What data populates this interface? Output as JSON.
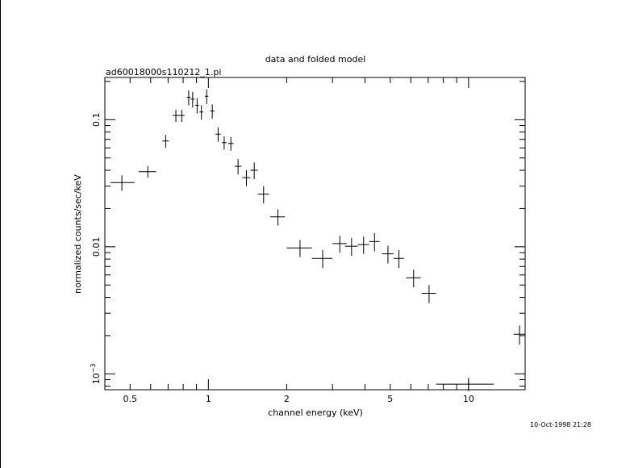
{
  "chart_data": {
    "type": "scatter",
    "title": "data and folded model",
    "subtitle": "ad60018000s110212_1.pi",
    "xlabel": "channel energy (keV)",
    "ylabel": "normalized counts/sec/keV",
    "xscale": "log",
    "yscale": "log",
    "xlim": [
      0.4,
      16.5
    ],
    "ylim": [
      0.00075,
      0.215
    ],
    "grid": false,
    "x_tick_labels": [
      "0.5",
      "1",
      "2",
      "5",
      "10"
    ],
    "y_tick_labels": [
      "10",
      "0.01",
      "0.1"
    ],
    "y_tick_exponent": "−3",
    "timestamp": "10-Oct-1998 21:28",
    "points": [
      {
        "x": 0.465,
        "y": 0.032,
        "xerr": [
          0.045,
          0.055
        ],
        "yerr": [
          0.0045,
          0.0045
        ]
      },
      {
        "x": 0.585,
        "y": 0.039,
        "xerr": [
          0.045,
          0.045
        ],
        "yerr": [
          0.004,
          0.004
        ]
      },
      {
        "x": 0.685,
        "y": 0.068,
        "xerr": [
          0.02,
          0.02
        ],
        "yerr": [
          0.008,
          0.008
        ]
      },
      {
        "x": 0.75,
        "y": 0.108,
        "xerr": [
          0.02,
          0.02
        ],
        "yerr": [
          0.012,
          0.012
        ]
      },
      {
        "x": 0.79,
        "y": 0.108,
        "xerr": [
          0.02,
          0.02
        ],
        "yerr": [
          0.012,
          0.012
        ]
      },
      {
        "x": 0.84,
        "y": 0.15,
        "xerr": [
          0.015,
          0.015
        ],
        "yerr": [
          0.02,
          0.02
        ]
      },
      {
        "x": 0.87,
        "y": 0.145,
        "xerr": [
          0.015,
          0.015
        ],
        "yerr": [
          0.02,
          0.02
        ]
      },
      {
        "x": 0.905,
        "y": 0.13,
        "xerr": [
          0.015,
          0.015
        ],
        "yerr": [
          0.018,
          0.018
        ]
      },
      {
        "x": 0.94,
        "y": 0.115,
        "xerr": [
          0.015,
          0.015
        ],
        "yerr": [
          0.015,
          0.015
        ]
      },
      {
        "x": 0.985,
        "y": 0.153,
        "xerr": [
          0.015,
          0.015
        ],
        "yerr": [
          0.02,
          0.02
        ]
      },
      {
        "x": 1.035,
        "y": 0.117,
        "xerr": [
          0.02,
          0.02
        ],
        "yerr": [
          0.015,
          0.015
        ]
      },
      {
        "x": 1.09,
        "y": 0.077,
        "xerr": [
          0.025,
          0.025
        ],
        "yerr": [
          0.01,
          0.01
        ]
      },
      {
        "x": 1.15,
        "y": 0.066,
        "xerr": [
          0.025,
          0.025
        ],
        "yerr": [
          0.008,
          0.008
        ]
      },
      {
        "x": 1.22,
        "y": 0.065,
        "xerr": [
          0.03,
          0.03
        ],
        "yerr": [
          0.008,
          0.008
        ]
      },
      {
        "x": 1.3,
        "y": 0.043,
        "xerr": [
          0.04,
          0.04
        ],
        "yerr": [
          0.006,
          0.006
        ]
      },
      {
        "x": 1.4,
        "y": 0.035,
        "xerr": [
          0.05,
          0.05
        ],
        "yerr": [
          0.005,
          0.005
        ]
      },
      {
        "x": 1.5,
        "y": 0.04,
        "xerr": [
          0.05,
          0.05
        ],
        "yerr": [
          0.006,
          0.006
        ]
      },
      {
        "x": 1.63,
        "y": 0.026,
        "xerr": [
          0.08,
          0.08
        ],
        "yerr": [
          0.004,
          0.004
        ]
      },
      {
        "x": 1.85,
        "y": 0.0172,
        "xerr": [
          0.12,
          0.12
        ],
        "yerr": [
          0.0025,
          0.0025
        ]
      },
      {
        "x": 2.25,
        "y": 0.0098,
        "xerr": [
          0.25,
          0.25
        ],
        "yerr": [
          0.0015,
          0.0015
        ]
      },
      {
        "x": 2.75,
        "y": 0.0081,
        "xerr": [
          0.25,
          0.25
        ],
        "yerr": [
          0.0013,
          0.0013
        ]
      },
      {
        "x": 3.2,
        "y": 0.0106,
        "xerr": [
          0.2,
          0.2
        ],
        "yerr": [
          0.0016,
          0.0016
        ]
      },
      {
        "x": 3.55,
        "y": 0.0101,
        "xerr": [
          0.2,
          0.2
        ],
        "yerr": [
          0.0016,
          0.0016
        ]
      },
      {
        "x": 3.95,
        "y": 0.0104,
        "xerr": [
          0.2,
          0.2
        ],
        "yerr": [
          0.0016,
          0.0016
        ]
      },
      {
        "x": 4.35,
        "y": 0.011,
        "xerr": [
          0.2,
          0.2
        ],
        "yerr": [
          0.0018,
          0.0018
        ]
      },
      {
        "x": 4.9,
        "y": 0.0088,
        "xerr": [
          0.25,
          0.25
        ],
        "yerr": [
          0.0014,
          0.0014
        ]
      },
      {
        "x": 5.4,
        "y": 0.0081,
        "xerr": [
          0.25,
          0.25
        ],
        "yerr": [
          0.0013,
          0.0013
        ]
      },
      {
        "x": 6.15,
        "y": 0.0057,
        "xerr": [
          0.4,
          0.4
        ],
        "yerr": [
          0.0009,
          0.0009
        ]
      },
      {
        "x": 7.05,
        "y": 0.0043,
        "xerr": [
          0.45,
          0.45
        ],
        "yerr": [
          0.0007,
          0.0007
        ]
      },
      {
        "x": 10.0,
        "y": 0.00083,
        "xerr": [
          2.5,
          2.5
        ],
        "yerr": [
          0.0001,
          0.0001
        ]
      },
      {
        "x": 15.7,
        "y": 0.00205,
        "xerr": [
          0.8,
          0.8
        ],
        "yerr": [
          0.00035,
          0.00035
        ]
      }
    ]
  }
}
